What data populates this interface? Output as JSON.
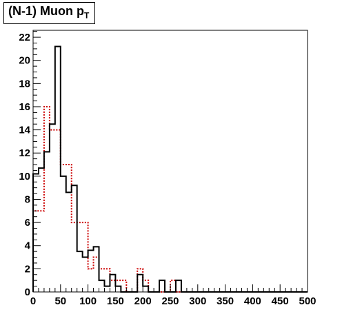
{
  "chart_data": {
    "type": "histogram",
    "title_main": "(N-1) Muon p",
    "title_sub": "T",
    "xlim": [
      0,
      500
    ],
    "ylim": [
      0,
      22.6
    ],
    "bin_width": 10,
    "x_ticks": [
      0,
      50,
      100,
      150,
      200,
      250,
      300,
      350,
      400,
      450,
      500
    ],
    "y_ticks": [
      0,
      2,
      4,
      6,
      8,
      10,
      12,
      14,
      16,
      18,
      20,
      22
    ],
    "grid": false,
    "legend": "none",
    "series": [
      {
        "color": "#000000",
        "style": "solid",
        "bin_edges_start": 0,
        "values": [
          10.2,
          10.7,
          12.1,
          14.5,
          21.2,
          10.0,
          8.6,
          9.2,
          3.5,
          3.0,
          3.6,
          3.9,
          1.0,
          0.5,
          1.5,
          0.5,
          0,
          0,
          0,
          1.5,
          0.5,
          0,
          0,
          1.0,
          0,
          0,
          1.0,
          0,
          0,
          0,
          0,
          0,
          0,
          0,
          0,
          0,
          0,
          0,
          0,
          0,
          0,
          0,
          0,
          0,
          0,
          0,
          0,
          0,
          0,
          0
        ]
      },
      {
        "color": "#cc0000",
        "style": "dotted",
        "bin_edges_start": 0,
        "values": [
          7.0,
          7.0,
          16.0,
          14.0,
          14.0,
          11.0,
          11.0,
          6.0,
          6.0,
          6.0,
          2.0,
          3.0,
          2.0,
          2.0,
          1.0,
          1.0,
          1.0,
          0,
          0,
          2.0,
          1.0,
          0,
          0,
          0,
          0,
          1.0,
          0,
          0,
          0,
          0,
          0,
          0,
          0,
          0,
          0,
          0,
          0,
          0,
          0,
          0,
          0,
          0,
          0,
          0,
          0,
          0,
          0,
          0,
          0,
          0
        ]
      }
    ]
  }
}
